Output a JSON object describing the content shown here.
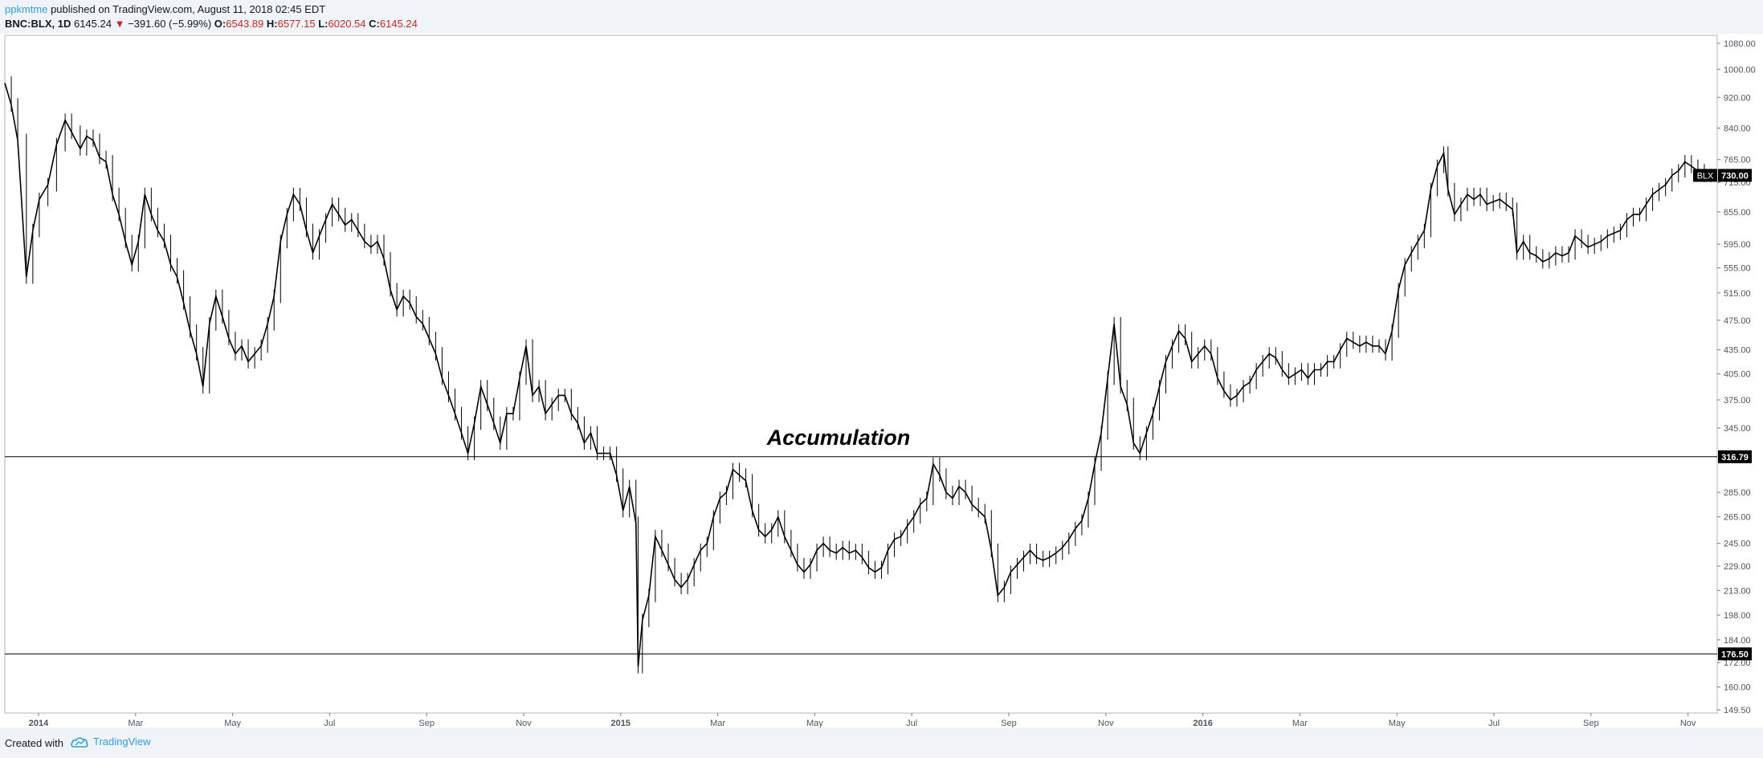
{
  "header": {
    "author": "ppkmtme",
    "published_text": " published on TradingView.com, August 11, 2018 02:45 EDT",
    "symbol": "BNC:BLX, 1D",
    "last": "6145.24",
    "change": "−391.60 (−5.99%)",
    "o_label": "O:",
    "o_value": "6543.89",
    "h_label": "H:",
    "h_value": "6577.15",
    "l_label": "L:",
    "l_value": "6020.54",
    "c_label": "C:",
    "c_value": "6145.24"
  },
  "footer": {
    "created_with": "Created with",
    "brand": "TradingView"
  },
  "colors": {
    "background": "#ffffff",
    "page": "#f0f3f7",
    "candle": "#000000",
    "accent": "#2f9fd8",
    "down": "#c62828"
  },
  "chart_data": {
    "type": "line",
    "series": [
      {
        "values": [
          [
            0,
            960
          ],
          [
            3,
            900
          ],
          [
            6,
            810
          ],
          [
            10,
            540
          ],
          [
            13,
            620
          ],
          [
            16,
            680
          ],
          [
            20,
            710
          ],
          [
            24,
            800
          ],
          [
            28,
            860
          ],
          [
            31,
            830
          ],
          [
            35,
            790
          ],
          [
            38,
            820
          ],
          [
            41,
            810
          ],
          [
            44,
            770
          ],
          [
            47,
            760
          ],
          [
            50,
            690
          ],
          [
            53,
            650
          ],
          [
            56,
            600
          ],
          [
            59,
            560
          ],
          [
            62,
            600
          ],
          [
            65,
            690
          ],
          [
            68,
            650
          ],
          [
            71,
            620
          ],
          [
            74,
            600
          ],
          [
            77,
            560
          ],
          [
            80,
            540
          ],
          [
            83,
            500
          ],
          [
            86,
            460
          ],
          [
            89,
            430
          ],
          [
            92,
            390
          ],
          [
            95,
            470
          ],
          [
            98,
            510
          ],
          [
            101,
            480
          ],
          [
            104,
            450
          ],
          [
            107,
            430
          ],
          [
            110,
            440
          ],
          [
            113,
            420
          ],
          [
            116,
            430
          ],
          [
            119,
            440
          ],
          [
            122,
            470
          ],
          [
            125,
            510
          ],
          [
            128,
            600
          ],
          [
            131,
            650
          ],
          [
            134,
            690
          ],
          [
            137,
            670
          ],
          [
            140,
            620
          ],
          [
            143,
            580
          ],
          [
            146,
            610
          ],
          [
            149,
            640
          ],
          [
            152,
            670
          ],
          [
            155,
            650
          ],
          [
            158,
            630
          ],
          [
            161,
            640
          ],
          [
            164,
            620
          ],
          [
            167,
            600
          ],
          [
            170,
            590
          ],
          [
            173,
            600
          ],
          [
            176,
            570
          ],
          [
            179,
            520
          ],
          [
            182,
            490
          ],
          [
            185,
            510
          ],
          [
            188,
            500
          ],
          [
            191,
            480
          ],
          [
            194,
            470
          ],
          [
            197,
            450
          ],
          [
            200,
            430
          ],
          [
            203,
            400
          ],
          [
            206,
            380
          ],
          [
            209,
            360
          ],
          [
            212,
            340
          ],
          [
            215,
            320
          ],
          [
            218,
            350
          ],
          [
            221,
            390
          ],
          [
            224,
            370
          ],
          [
            227,
            350
          ],
          [
            230,
            330
          ],
          [
            233,
            360
          ],
          [
            236,
            360
          ],
          [
            239,
            400
          ],
          [
            242,
            440
          ],
          [
            245,
            380
          ],
          [
            248,
            390
          ],
          [
            251,
            360
          ],
          [
            254,
            370
          ],
          [
            257,
            380
          ],
          [
            260,
            380
          ],
          [
            263,
            360
          ],
          [
            266,
            350
          ],
          [
            269,
            330
          ],
          [
            272,
            340
          ],
          [
            275,
            320
          ],
          [
            278,
            320
          ],
          [
            281,
            320
          ],
          [
            284,
            300
          ],
          [
            287,
            270
          ],
          [
            290,
            290
          ],
          [
            293,
            260
          ],
          [
            294,
            170
          ],
          [
            296,
            195
          ],
          [
            299,
            210
          ],
          [
            302,
            250
          ],
          [
            305,
            240
          ],
          [
            308,
            230
          ],
          [
            311,
            220
          ],
          [
            314,
            215
          ],
          [
            317,
            220
          ],
          [
            320,
            230
          ],
          [
            323,
            240
          ],
          [
            326,
            245
          ],
          [
            329,
            265
          ],
          [
            332,
            280
          ],
          [
            335,
            285
          ],
          [
            338,
            305
          ],
          [
            341,
            300
          ],
          [
            344,
            295
          ],
          [
            347,
            270
          ],
          [
            350,
            255
          ],
          [
            353,
            250
          ],
          [
            356,
            255
          ],
          [
            359,
            265
          ],
          [
            362,
            250
          ],
          [
            365,
            240
          ],
          [
            368,
            230
          ],
          [
            371,
            225
          ],
          [
            374,
            230
          ],
          [
            377,
            240
          ],
          [
            380,
            245
          ],
          [
            383,
            240
          ],
          [
            386,
            238
          ],
          [
            389,
            242
          ],
          [
            392,
            238
          ],
          [
            395,
            240
          ],
          [
            398,
            235
          ],
          [
            401,
            228
          ],
          [
            404,
            225
          ],
          [
            407,
            228
          ],
          [
            410,
            240
          ],
          [
            413,
            248
          ],
          [
            416,
            250
          ],
          [
            419,
            258
          ],
          [
            422,
            265
          ],
          [
            425,
            275
          ],
          [
            428,
            280
          ],
          [
            431,
            310
          ],
          [
            434,
            300
          ],
          [
            437,
            285
          ],
          [
            440,
            280
          ],
          [
            443,
            290
          ],
          [
            446,
            285
          ],
          [
            449,
            275
          ],
          [
            452,
            270
          ],
          [
            455,
            265
          ],
          [
            458,
            240
          ],
          [
            461,
            210
          ],
          [
            464,
            215
          ],
          [
            467,
            225
          ],
          [
            470,
            230
          ],
          [
            473,
            235
          ],
          [
            476,
            240
          ],
          [
            479,
            235
          ],
          [
            482,
            233
          ],
          [
            485,
            235
          ],
          [
            488,
            238
          ],
          [
            491,
            242
          ],
          [
            494,
            248
          ],
          [
            497,
            256
          ],
          [
            500,
            262
          ],
          [
            503,
            280
          ],
          [
            506,
            310
          ],
          [
            509,
            340
          ],
          [
            512,
            400
          ],
          [
            515,
            470
          ],
          [
            518,
            390
          ],
          [
            521,
            370
          ],
          [
            524,
            330
          ],
          [
            527,
            320
          ],
          [
            530,
            340
          ],
          [
            533,
            360
          ],
          [
            536,
            390
          ],
          [
            539,
            420
          ],
          [
            542,
            440
          ],
          [
            545,
            460
          ],
          [
            548,
            450
          ],
          [
            551,
            420
          ],
          [
            554,
            430
          ],
          [
            557,
            440
          ],
          [
            560,
            430
          ],
          [
            563,
            400
          ],
          [
            566,
            385
          ],
          [
            569,
            375
          ],
          [
            572,
            380
          ],
          [
            575,
            390
          ],
          [
            578,
            395
          ],
          [
            581,
            410
          ],
          [
            584,
            420
          ],
          [
            587,
            430
          ],
          [
            590,
            425
          ],
          [
            593,
            410
          ],
          [
            596,
            400
          ],
          [
            599,
            405
          ],
          [
            602,
            410
          ],
          [
            605,
            400
          ],
          [
            608,
            410
          ],
          [
            611,
            410
          ],
          [
            614,
            420
          ],
          [
            617,
            420
          ],
          [
            620,
            435
          ],
          [
            623,
            450
          ],
          [
            626,
            445
          ],
          [
            629,
            440
          ],
          [
            632,
            445
          ],
          [
            635,
            440
          ],
          [
            638,
            440
          ],
          [
            641,
            430
          ],
          [
            644,
            460
          ],
          [
            647,
            520
          ],
          [
            650,
            560
          ],
          [
            653,
            580
          ],
          [
            656,
            600
          ],
          [
            659,
            620
          ],
          [
            662,
            700
          ],
          [
            665,
            750
          ],
          [
            668,
            780
          ],
          [
            670,
            700
          ],
          [
            673,
            650
          ],
          [
            676,
            670
          ],
          [
            679,
            690
          ],
          [
            682,
            680
          ],
          [
            685,
            690
          ],
          [
            688,
            670
          ],
          [
            691,
            675
          ],
          [
            694,
            680
          ],
          [
            697,
            670
          ],
          [
            700,
            660
          ],
          [
            702,
            580
          ],
          [
            705,
            600
          ],
          [
            708,
            580
          ],
          [
            711,
            575
          ],
          [
            714,
            565
          ],
          [
            717,
            570
          ],
          [
            720,
            580
          ],
          [
            723,
            575
          ],
          [
            726,
            580
          ],
          [
            729,
            610
          ],
          [
            732,
            600
          ],
          [
            735,
            590
          ],
          [
            738,
            595
          ],
          [
            741,
            600
          ],
          [
            744,
            610
          ],
          [
            747,
            615
          ],
          [
            750,
            620
          ],
          [
            753,
            640
          ],
          [
            756,
            650
          ],
          [
            759,
            650
          ],
          [
            762,
            670
          ],
          [
            765,
            690
          ],
          [
            768,
            700
          ],
          [
            771,
            710
          ],
          [
            774,
            730
          ],
          [
            777,
            740
          ],
          [
            780,
            760
          ],
          [
            783,
            750
          ],
          [
            786,
            740
          ],
          [
            789,
            730
          ],
          [
            792,
            730
          ]
        ]
      }
    ],
    "x_unit": "trading days from late Nov 2013",
    "xlim": [
      0,
      792
    ],
    "ylim": [
      149.5,
      1080
    ],
    "y_scale": "log",
    "y_ticks": [
      "1080.00",
      "1000.00",
      "920.00",
      "840.00",
      "765.00",
      "715.00",
      "655.00",
      "595.00",
      "555.00",
      "515.00",
      "475.00",
      "435.00",
      "405.00",
      "375.00",
      "345.00",
      "285.00",
      "265.00",
      "245.00",
      "229.00",
      "213.00",
      "198.00",
      "184.00",
      "172.00",
      "160.00",
      "149.50"
    ],
    "x_ticks": [
      {
        "label": "2014",
        "bold": true
      },
      {
        "label": "Mar"
      },
      {
        "label": "May"
      },
      {
        "label": "Jul"
      },
      {
        "label": "Sep"
      },
      {
        "label": "Nov"
      },
      {
        "label": "2015",
        "bold": true
      },
      {
        "label": "Mar"
      },
      {
        "label": "May"
      },
      {
        "label": "Jul"
      },
      {
        "label": "Sep"
      },
      {
        "label": "Nov"
      },
      {
        "label": "2016",
        "bold": true
      },
      {
        "label": "Mar"
      },
      {
        "label": "May"
      },
      {
        "label": "Jul"
      },
      {
        "label": "Sep"
      },
      {
        "label": "Nov"
      }
    ],
    "horizontal_lines": [
      {
        "value": 316.79,
        "label": "316.79"
      },
      {
        "value": 176.5,
        "label": "176.50"
      }
    ],
    "last_price": {
      "value": 730.0,
      "label": "730.00",
      "tag": "BLX"
    },
    "annotation": {
      "text": "Accumulation",
      "x_date_near": "Jun 2015",
      "y_value": 340
    },
    "grid": false,
    "legend": "none"
  }
}
